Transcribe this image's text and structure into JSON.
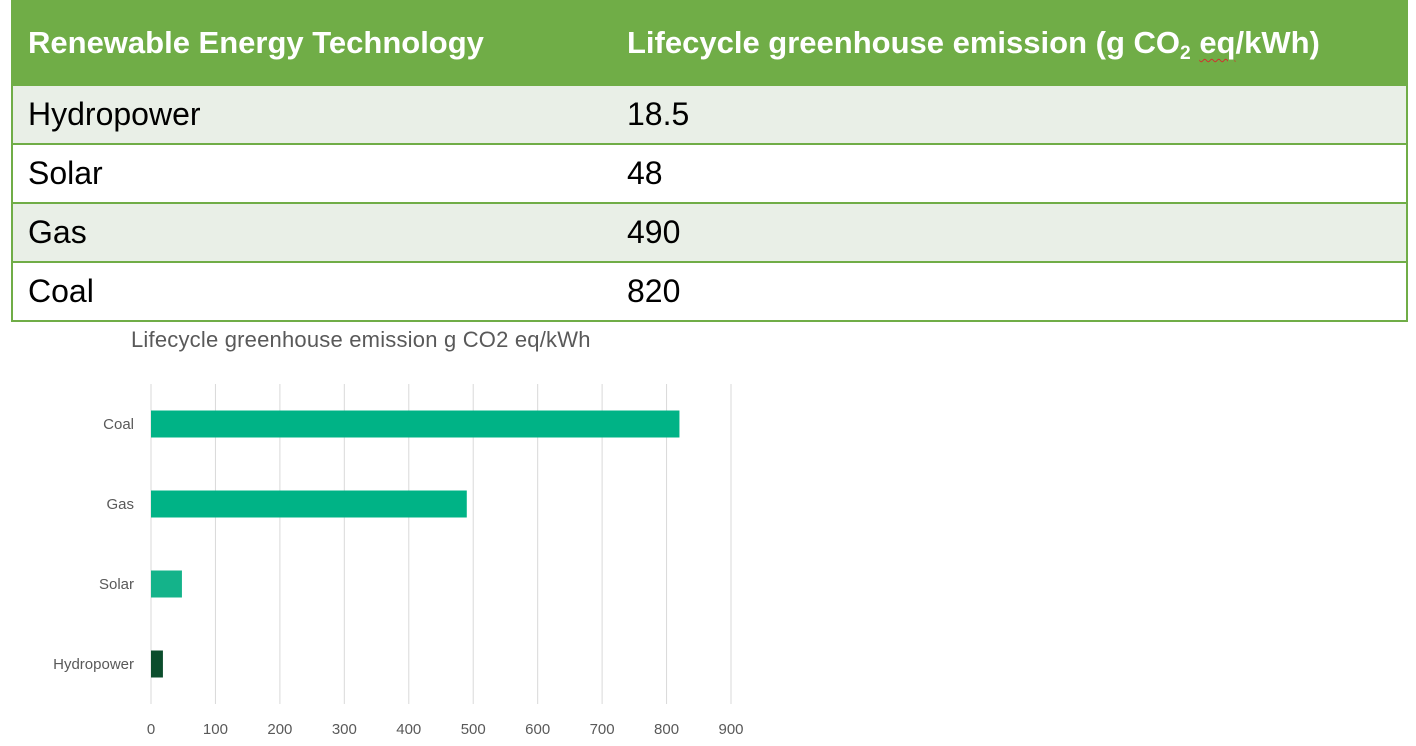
{
  "table": {
    "headers": {
      "technology": "Renewable Energy Technology",
      "emission_prefix": "Lifecycle greenhouse emission (g CO",
      "emission_sub": "2",
      "emission_mid": " ",
      "emission_eq": "eq",
      "emission_suffix": "/kWh)"
    },
    "rows": [
      {
        "technology": "Hydropower",
        "emission": "18.5"
      },
      {
        "technology": "Solar",
        "emission": "48"
      },
      {
        "technology": "Gas",
        "emission": "490"
      },
      {
        "technology": "Coal",
        "emission": "820"
      }
    ],
    "colors": {
      "header_bg": "#70ad47",
      "band": "#e9efe7",
      "border": "#70ad47"
    }
  },
  "chart_data": {
    "type": "bar",
    "orientation": "horizontal",
    "title": "Lifecycle greenhouse emission g CO2 eq/kWh",
    "categories": [
      "Coal",
      "Gas",
      "Solar",
      "Hydropower"
    ],
    "values": [
      820,
      490,
      48,
      18.5
    ],
    "bar_colors": [
      "#00b386",
      "#00b386",
      "#14b38a",
      "#0b4d2c"
    ],
    "xlim": [
      0,
      900
    ],
    "xticks": [
      "0",
      "100",
      "200",
      "300",
      "400",
      "500",
      "600",
      "700",
      "800",
      "900"
    ],
    "grid": "vertical",
    "xlabel": "",
    "ylabel": ""
  }
}
